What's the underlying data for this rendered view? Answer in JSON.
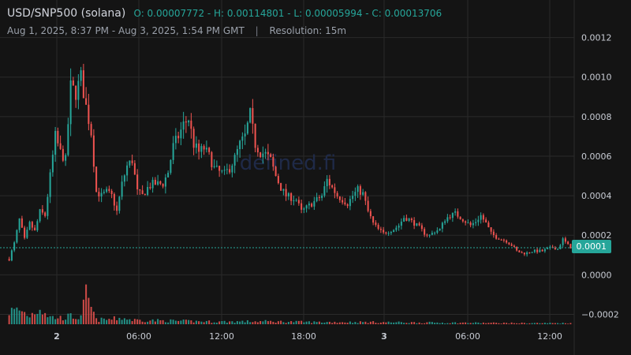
{
  "header": {
    "symbol": "USD/SNP500 (solana)",
    "ohlc_text": "O: 0.00007772 - H: 0.00114801 - L: 0.00005994 - C: 0.00013706",
    "range": "Aug 1, 2025, 8:37 PM - Aug 3, 2025, 1:54 PM GMT",
    "separator": "|",
    "resolution": "Resolution: 15m"
  },
  "watermark": "defined.fi",
  "last_price_label": "0.0001",
  "colors": {
    "up": "#26a69a",
    "down": "#ef5350",
    "grid": "#2a2a2a",
    "axis_text": "#c8ccd4"
  },
  "chart_data": {
    "type": "candlestick",
    "title": "",
    "xlabel": "",
    "ylabel": "",
    "ylim": [
      -0.00025,
      0.00135
    ],
    "y_ticks": [
      -0.0002,
      0.0,
      0.0002,
      0.0004,
      0.0006,
      0.0008,
      0.001,
      0.0012
    ],
    "y_tick_labels": [
      "−0.0002",
      "0.0000",
      "0.0002",
      "0.0004",
      "0.0006",
      "0.0008",
      "0.0010",
      "0.0012"
    ],
    "x_ticks": [
      "2",
      "06:00",
      "12:00",
      "18:00",
      "3",
      "06:00",
      "12:00"
    ],
    "last_price": 0.000137,
    "grid": true,
    "series_path": [
      [
        0,
        8e-05
      ],
      [
        2,
        0.00016
      ],
      [
        4,
        0.00028
      ],
      [
        6,
        0.00018
      ],
      [
        8,
        0.00026
      ],
      [
        10,
        0.00022
      ],
      [
        12,
        0.00032
      ],
      [
        14,
        0.0003
      ],
      [
        16,
        0.0005
      ],
      [
        18,
        0.0007
      ],
      [
        20,
        0.00062
      ],
      [
        22,
        0.00058
      ],
      [
        24,
        0.00095
      ],
      [
        26,
        0.00092
      ],
      [
        28,
        0.001
      ],
      [
        30,
        0.00085
      ],
      [
        32,
        0.00072
      ],
      [
        34,
        0.00042
      ],
      [
        36,
        0.0004
      ],
      [
        38,
        0.00042
      ],
      [
        40,
        0.0004
      ],
      [
        42,
        0.00032
      ],
      [
        44,
        0.00046
      ],
      [
        46,
        0.00055
      ],
      [
        48,
        0.00058
      ],
      [
        50,
        0.00042
      ],
      [
        52,
        0.0004
      ],
      [
        54,
        0.00044
      ],
      [
        56,
        0.00046
      ],
      [
        58,
        0.00046
      ],
      [
        60,
        0.00046
      ],
      [
        62,
        0.00052
      ],
      [
        64,
        0.00065
      ],
      [
        66,
        0.0007
      ],
      [
        68,
        0.00076
      ],
      [
        70,
        0.00079
      ],
      [
        72,
        0.00066
      ],
      [
        74,
        0.00062
      ],
      [
        76,
        0.00064
      ],
      [
        78,
        0.0006
      ],
      [
        80,
        0.00054
      ],
      [
        82,
        0.00052
      ],
      [
        84,
        0.00051
      ],
      [
        86,
        0.00054
      ],
      [
        88,
        0.00059
      ],
      [
        90,
        0.00066
      ],
      [
        92,
        0.0007
      ],
      [
        94,
        0.00081
      ],
      [
        96,
        0.00066
      ],
      [
        98,
        0.00062
      ],
      [
        100,
        0.00061
      ],
      [
        102,
        0.00058
      ],
      [
        104,
        0.0005
      ],
      [
        106,
        0.00044
      ],
      [
        108,
        0.0004
      ],
      [
        110,
        0.00039
      ],
      [
        112,
        0.00038
      ],
      [
        114,
        0.00032
      ],
      [
        116,
        0.00034
      ],
      [
        118,
        0.00036
      ],
      [
        120,
        0.00038
      ],
      [
        122,
        0.0004
      ],
      [
        124,
        0.00048
      ],
      [
        126,
        0.00044
      ],
      [
        128,
        0.0004
      ],
      [
        130,
        0.00038
      ],
      [
        132,
        0.00036
      ],
      [
        134,
        0.0004
      ],
      [
        136,
        0.00043
      ],
      [
        138,
        0.00041
      ],
      [
        140,
        0.00032
      ],
      [
        142,
        0.00026
      ],
      [
        144,
        0.00023
      ],
      [
        146,
        0.00021
      ],
      [
        148,
        0.00022
      ],
      [
        150,
        0.00023
      ],
      [
        152,
        0.00025
      ],
      [
        154,
        0.00029
      ],
      [
        156,
        0.00028
      ],
      [
        158,
        0.00026
      ],
      [
        160,
        0.00024
      ],
      [
        162,
        0.00021
      ],
      [
        164,
        0.0002
      ],
      [
        166,
        0.00022
      ],
      [
        168,
        0.00023
      ],
      [
        170,
        0.00028
      ],
      [
        172,
        0.0003
      ],
      [
        174,
        0.00031
      ],
      [
        176,
        0.00029
      ],
      [
        178,
        0.00027
      ],
      [
        180,
        0.00025
      ],
      [
        182,
        0.00027
      ],
      [
        184,
        0.0003
      ],
      [
        186,
        0.00026
      ],
      [
        188,
        0.00021
      ],
      [
        190,
        0.00019
      ],
      [
        192,
        0.00018
      ],
      [
        194,
        0.00017
      ],
      [
        196,
        0.00015
      ],
      [
        198,
        0.00012
      ],
      [
        200,
        0.00011
      ],
      [
        202,
        0.00011
      ],
      [
        204,
        0.00012
      ],
      [
        206,
        0.00012
      ],
      [
        208,
        0.00012
      ],
      [
        210,
        0.00013
      ],
      [
        212,
        0.00014
      ],
      [
        214,
        0.00013
      ],
      [
        216,
        0.00018
      ],
      [
        218,
        0.00015
      ],
      [
        219,
        0.00014
      ]
    ],
    "volume_path": [
      [
        0,
        0.9
      ],
      [
        4,
        1.0
      ],
      [
        8,
        0.6
      ],
      [
        12,
        1.2
      ],
      [
        16,
        0.5
      ],
      [
        20,
        0.45
      ],
      [
        24,
        0.55
      ],
      [
        28,
        0.45
      ],
      [
        30,
        2.0
      ],
      [
        34,
        0.3
      ],
      [
        40,
        0.35
      ],
      [
        44,
        0.45
      ],
      [
        48,
        0.3
      ],
      [
        60,
        0.25
      ],
      [
        80,
        0.18
      ],
      [
        100,
        0.2
      ],
      [
        120,
        0.15
      ],
      [
        140,
        0.15
      ],
      [
        160,
        0.12
      ],
      [
        180,
        0.1
      ],
      [
        200,
        0.08
      ],
      [
        219,
        0.08
      ]
    ],
    "candle_count": 220
  }
}
